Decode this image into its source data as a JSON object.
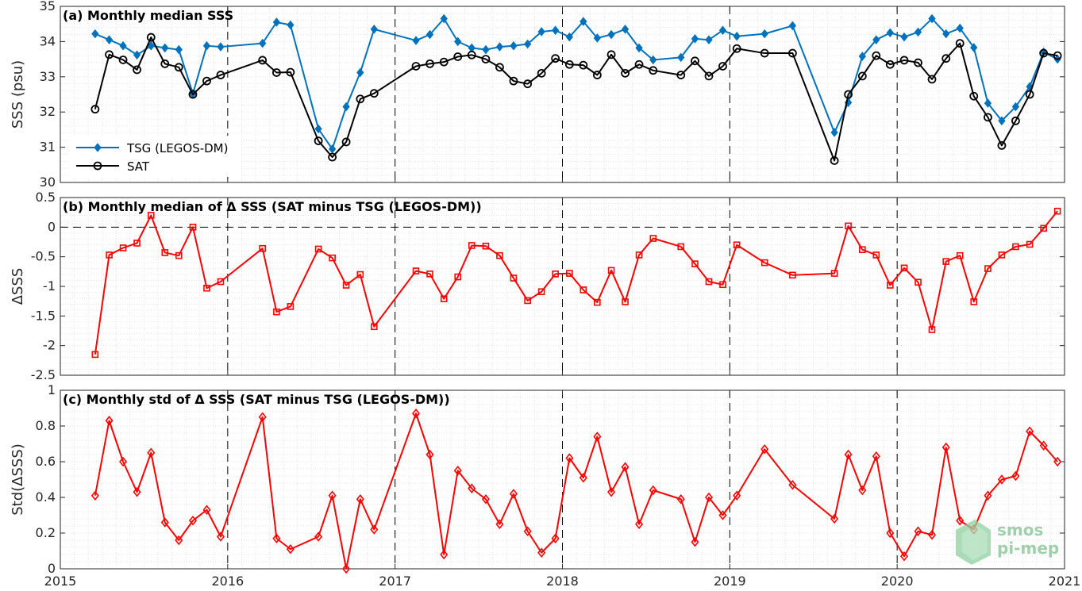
{
  "xaxis": {
    "min": 2015.0,
    "max": 2021.0,
    "ticks": [
      2015,
      2016,
      2017,
      2018,
      2019,
      2020,
      2021
    ],
    "tick_labels": [
      "2015",
      "2016",
      "2017",
      "2018",
      "2019",
      "2020",
      "2021"
    ],
    "year_dividers": [
      2016,
      2017,
      2018,
      2019,
      2020
    ]
  },
  "colors": {
    "tsg": "#0072BD",
    "sat": "#000000",
    "delta": "#FF0000",
    "grid": "#d9d9d9"
  },
  "logo": {
    "line1": "smos",
    "line2": "pi-mep"
  },
  "chart_data": [
    {
      "type": "line",
      "title": "(a) Monthly median SSS",
      "ylabel": "SSS (psu)",
      "ylim": [
        30,
        35
      ],
      "yticks": [
        30,
        31,
        32,
        33,
        34,
        35
      ],
      "grid": true,
      "legend_position": "lower-left",
      "x": [
        2015.208,
        2015.292,
        2015.375,
        2015.458,
        2015.542,
        2015.625,
        2015.708,
        2015.792,
        2015.875,
        2015.958,
        2016.208,
        2016.292,
        2016.375,
        2016.542,
        2016.625,
        2016.708,
        2016.792,
        2016.875,
        2017.125,
        2017.208,
        2017.292,
        2017.375,
        2017.458,
        2017.542,
        2017.625,
        2017.708,
        2017.792,
        2017.875,
        2017.958,
        2018.042,
        2018.125,
        2018.208,
        2018.292,
        2018.375,
        2018.458,
        2018.542,
        2018.708,
        2018.792,
        2018.875,
        2018.958,
        2019.042,
        2019.208,
        2019.375,
        2019.625,
        2019.708,
        2019.792,
        2019.875,
        2019.958,
        2020.042,
        2020.125,
        2020.208,
        2020.292,
        2020.375,
        2020.458,
        2020.542,
        2020.625,
        2020.708,
        2020.792,
        2020.875,
        2020.958
      ],
      "series": [
        {
          "name": "TSG (LEGOS-DM)",
          "marker": "diamond-filled",
          "values": [
            34.22,
            34.05,
            33.88,
            33.62,
            33.88,
            33.82,
            33.77,
            32.52,
            33.88,
            33.85,
            33.95,
            34.55,
            34.47,
            31.52,
            30.95,
            32.15,
            33.12,
            34.35,
            34.03,
            34.2,
            34.65,
            34.0,
            33.82,
            33.77,
            33.85,
            33.88,
            33.93,
            34.28,
            34.32,
            34.13,
            34.57,
            34.1,
            34.2,
            34.35,
            33.82,
            33.48,
            33.55,
            34.08,
            34.05,
            34.32,
            34.15,
            34.22,
            34.45,
            31.42,
            32.27,
            33.58,
            34.05,
            34.25,
            34.13,
            34.27,
            34.65,
            34.22,
            34.38,
            33.83,
            32.25,
            31.75,
            32.15,
            32.72,
            33.7,
            33.5
          ]
        },
        {
          "name": "SAT",
          "marker": "circle-open",
          "values": [
            32.08,
            33.63,
            33.48,
            33.2,
            34.12,
            33.37,
            33.27,
            32.5,
            32.88,
            33.05,
            33.47,
            33.12,
            33.13,
            31.18,
            30.72,
            31.15,
            32.37,
            32.53,
            33.3,
            33.37,
            33.42,
            33.57,
            33.62,
            33.5,
            33.27,
            32.88,
            32.8,
            33.1,
            33.52,
            33.35,
            33.33,
            33.05,
            33.63,
            33.1,
            33.35,
            33.18,
            33.05,
            33.45,
            33.02,
            33.3,
            33.8,
            33.67,
            33.67,
            30.62,
            32.5,
            33.02,
            33.6,
            33.35,
            33.47,
            33.4,
            32.93,
            33.52,
            33.95,
            32.45,
            31.85,
            31.05,
            31.75,
            32.5,
            33.67,
            33.6
          ]
        }
      ]
    },
    {
      "type": "line",
      "title": "(b) Monthly median of Δ SSS (SAT minus TSG (LEGOS-DM))",
      "ylabel": "ΔSSS",
      "ylim": [
        -2.5,
        0.5
      ],
      "yticks": [
        -2.5,
        -2,
        -1.5,
        -1,
        -0.5,
        0,
        0.5
      ],
      "ytick_labels": [
        "-2.5",
        "-2",
        "-1.5",
        "-1",
        "-0.5",
        "0",
        "0.5"
      ],
      "zero_line": true,
      "grid": true,
      "x": [
        2015.208,
        2015.292,
        2015.375,
        2015.458,
        2015.542,
        2015.625,
        2015.708,
        2015.792,
        2015.875,
        2015.958,
        2016.208,
        2016.292,
        2016.375,
        2016.542,
        2016.625,
        2016.708,
        2016.792,
        2016.875,
        2017.125,
        2017.208,
        2017.292,
        2017.375,
        2017.458,
        2017.542,
        2017.625,
        2017.708,
        2017.792,
        2017.875,
        2017.958,
        2018.042,
        2018.125,
        2018.208,
        2018.292,
        2018.375,
        2018.458,
        2018.542,
        2018.708,
        2018.792,
        2018.875,
        2018.958,
        2019.042,
        2019.208,
        2019.375,
        2019.625,
        2019.708,
        2019.792,
        2019.875,
        2019.958,
        2020.042,
        2020.125,
        2020.208,
        2020.292,
        2020.375,
        2020.458,
        2020.542,
        2020.625,
        2020.708,
        2020.792,
        2020.875,
        2020.958
      ],
      "series": [
        {
          "marker": "square-open",
          "values": [
            -2.15,
            -0.47,
            -0.35,
            -0.27,
            0.2,
            -0.43,
            -0.48,
            0.0,
            -1.03,
            -0.92,
            -0.36,
            -1.43,
            -1.34,
            -0.37,
            -0.52,
            -0.98,
            -0.8,
            -1.68,
            -0.74,
            -0.79,
            -1.21,
            -0.84,
            -0.31,
            -0.32,
            -0.48,
            -0.86,
            -1.24,
            -1.09,
            -0.79,
            -0.78,
            -1.06,
            -1.27,
            -0.73,
            -1.26,
            -0.47,
            -0.19,
            -0.33,
            -0.62,
            -0.92,
            -0.97,
            -0.3,
            -0.6,
            -0.81,
            -0.78,
            0.02,
            -0.38,
            -0.47,
            -0.98,
            -0.69,
            -0.93,
            -1.73,
            -0.58,
            -0.48,
            -1.26,
            -0.7,
            -0.47,
            -0.33,
            -0.29,
            -0.02,
            0.27
          ]
        }
      ]
    },
    {
      "type": "line",
      "title": "(c) Monthly std of Δ SSS (SAT minus TSG (LEGOS-DM))",
      "ylabel": "Std(ΔSSS)",
      "ylim": [
        0,
        1
      ],
      "yticks": [
        0,
        0.2,
        0.4,
        0.6,
        0.8,
        1
      ],
      "ytick_labels": [
        "0",
        "0.2",
        "0.4",
        "0.6",
        "0.8",
        "1"
      ],
      "grid": true,
      "x": [
        2015.208,
        2015.292,
        2015.375,
        2015.458,
        2015.542,
        2015.625,
        2015.708,
        2015.792,
        2015.875,
        2015.958,
        2016.208,
        2016.292,
        2016.375,
        2016.542,
        2016.625,
        2016.708,
        2016.792,
        2016.875,
        2017.125,
        2017.208,
        2017.292,
        2017.375,
        2017.458,
        2017.542,
        2017.625,
        2017.708,
        2017.792,
        2017.875,
        2017.958,
        2018.042,
        2018.125,
        2018.208,
        2018.292,
        2018.375,
        2018.458,
        2018.542,
        2018.708,
        2018.792,
        2018.875,
        2018.958,
        2019.042,
        2019.208,
        2019.375,
        2019.625,
        2019.708,
        2019.792,
        2019.875,
        2019.958,
        2020.042,
        2020.125,
        2020.208,
        2020.292,
        2020.375,
        2020.458,
        2020.542,
        2020.625,
        2020.708,
        2020.792,
        2020.875,
        2020.958
      ],
      "series": [
        {
          "marker": "diamond-open",
          "values": [
            0.41,
            0.83,
            0.6,
            0.43,
            0.65,
            0.26,
            0.16,
            0.27,
            0.33,
            0.18,
            0.85,
            0.17,
            0.11,
            0.18,
            0.41,
            0.0,
            0.39,
            0.22,
            0.87,
            0.64,
            0.08,
            0.55,
            0.45,
            0.39,
            0.25,
            0.42,
            0.21,
            0.09,
            0.17,
            0.62,
            0.51,
            0.74,
            0.43,
            0.57,
            0.25,
            0.44,
            0.39,
            0.15,
            0.4,
            0.3,
            0.41,
            0.67,
            0.47,
            0.28,
            0.64,
            0.44,
            0.63,
            0.2,
            0.07,
            0.21,
            0.19,
            0.68,
            0.27,
            0.22,
            0.41,
            0.5,
            0.52,
            0.77,
            0.69,
            0.6
          ]
        }
      ]
    }
  ]
}
